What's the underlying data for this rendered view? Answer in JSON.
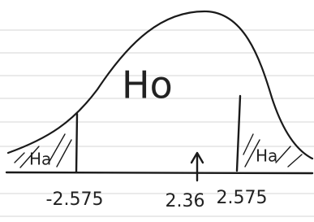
{
  "curve_label": "Ho",
  "regions": [
    {
      "label": "Ha"
    },
    {
      "label": "Ha"
    }
  ],
  "axis_labels": [
    "-2.575",
    "2.36",
    "2.575"
  ]
}
